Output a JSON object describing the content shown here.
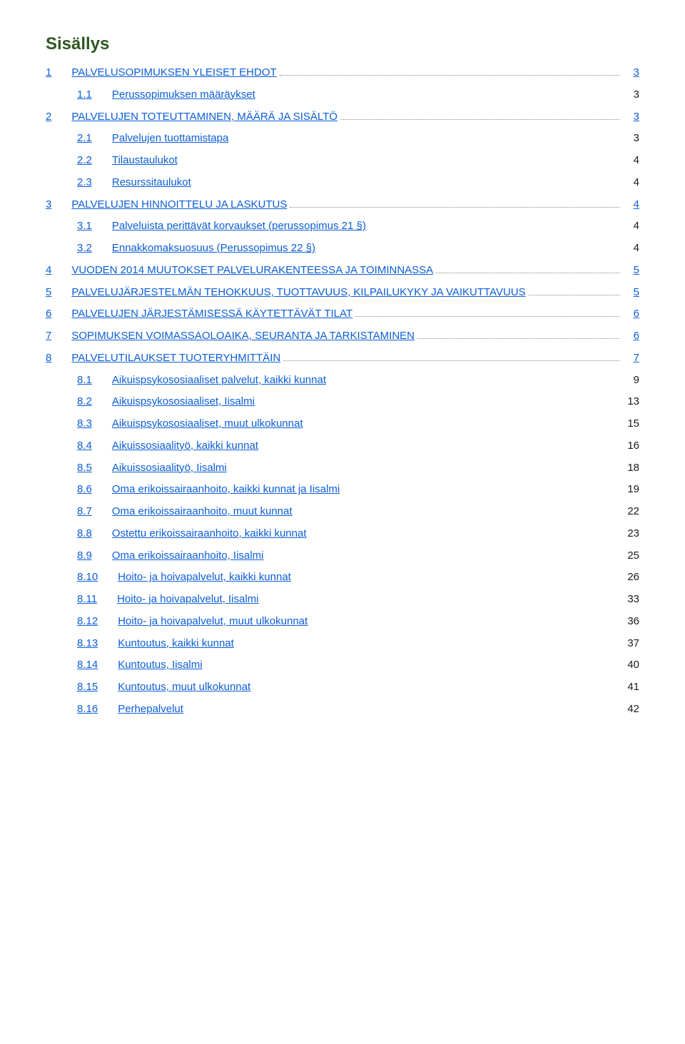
{
  "title": "Sisällys",
  "colors": {
    "title": "#2f5722",
    "link": "#0b5ed7",
    "text": "#1a1a1a",
    "background": "#ffffff",
    "dotted": "#888888"
  },
  "typography": {
    "title_fontsize_pt": 18,
    "body_fontsize_pt": 11,
    "font_family": "Arial"
  },
  "entries": [
    {
      "level": 0,
      "num": "1",
      "label": "PALVELUSOPIMUKSEN YLEISET EHDOT",
      "page": "3",
      "leader": true,
      "page_link": true
    },
    {
      "level": 1,
      "num": "1.1",
      "label": "Perussopimuksen määräykset",
      "page": "3",
      "leader": false,
      "page_link": false
    },
    {
      "level": 0,
      "num": "2",
      "label": "PALVELUJEN TOTEUTTAMINEN, MÄÄRÄ JA SISÄLTÖ",
      "page": "3",
      "leader": true,
      "page_link": true
    },
    {
      "level": 1,
      "num": "2.1",
      "label": "Palvelujen tuottamistapa",
      "page": "3",
      "leader": false,
      "page_link": false
    },
    {
      "level": 1,
      "num": "2.2",
      "label": "Tilaustaulukot",
      "page": "4",
      "leader": false,
      "page_link": false
    },
    {
      "level": 1,
      "num": "2.3",
      "label": "Resurssitaulukot",
      "page": "4",
      "leader": false,
      "page_link": false
    },
    {
      "level": 0,
      "num": "3",
      "label": "PALVELUJEN HINNOITTELU JA LASKUTUS",
      "page": "4",
      "leader": true,
      "page_link": true
    },
    {
      "level": 1,
      "num": "3.1",
      "label": "Palveluista perittävät korvaukset (perussopimus 21 §)",
      "page": "4",
      "leader": false,
      "page_link": false
    },
    {
      "level": 1,
      "num": "3.2",
      "label": "Ennakkomaksuosuus (Perussopimus 22 §)",
      "page": "4",
      "leader": false,
      "page_link": false
    },
    {
      "level": 0,
      "num": "4",
      "label": "VUODEN 2014 MUUTOKSET PALVELURAKENTEESSA JA TOIMINNASSA",
      "page": "5",
      "leader": true,
      "page_link": true
    },
    {
      "level": 0,
      "num": "5",
      "label": "PALVELUJÄRJESTELMÄN TEHOKKUUS, TUOTTAVUUS, KILPAILUKYKY JA VAIKUTTAVUUS",
      "page": "5",
      "leader": true,
      "page_link": true
    },
    {
      "level": 0,
      "num": "6",
      "label": "PALVELUJEN JÄRJESTÄMISESSÄ KÄYTETTÄVÄT TILAT",
      "page": "6",
      "leader": true,
      "page_link": true
    },
    {
      "level": 0,
      "num": "7",
      "label": "SOPIMUKSEN VOIMASSAOLOAIKA, SEURANTA JA TARKISTAMINEN",
      "page": "6",
      "leader": true,
      "page_link": true
    },
    {
      "level": 0,
      "num": "8",
      "label": "PALVELUTILAUKSET TUOTERYHMITTÄIN",
      "page": "7",
      "leader": true,
      "page_link": true
    },
    {
      "level": 1,
      "num": "8.1",
      "label": "Aikuispsykososiaaliset palvelut, kaikki kunnat",
      "page": "9",
      "leader": false,
      "page_link": false
    },
    {
      "level": 1,
      "num": "8.2",
      "label": "Aikuispsykososiaaliset, Iisalmi",
      "page": "13",
      "leader": false,
      "page_link": false
    },
    {
      "level": 1,
      "num": "8.3",
      "label": "Aikuispsykososiaaliset, muut ulkokunnat",
      "page": "15",
      "leader": false,
      "page_link": false
    },
    {
      "level": 1,
      "num": "8.4",
      "label": "Aikuissosiaalityö, kaikki kunnat",
      "page": "16",
      "leader": false,
      "page_link": false
    },
    {
      "level": 1,
      "num": "8.5",
      "label": "Aikuissosiaalityö, Iisalmi",
      "page": "18",
      "leader": false,
      "page_link": false
    },
    {
      "level": 1,
      "num": "8.6",
      "label": "Oma erikoissairaanhoito, kaikki kunnat ja Iisalmi",
      "page": "19",
      "leader": false,
      "page_link": false
    },
    {
      "level": 1,
      "num": "8.7",
      "label": "Oma erikoissairaanhoito, muut kunnat",
      "page": "22",
      "leader": false,
      "page_link": false
    },
    {
      "level": 1,
      "num": "8.8",
      "label": "Ostettu erikoissairaanhoito, kaikki kunnat",
      "page": "23",
      "leader": false,
      "page_link": false
    },
    {
      "level": 1,
      "num": "8.9",
      "label": "Oma erikoissairaanhoito, Iisalmi",
      "page": "25",
      "leader": false,
      "page_link": false
    },
    {
      "level": 1,
      "num": "8.10",
      "label": "Hoito- ja hoivapalvelut, kaikki kunnat",
      "page": "26",
      "leader": false,
      "page_link": false
    },
    {
      "level": 1,
      "num": "8.11",
      "label": "Hoito- ja hoivapalvelut, Iisalmi",
      "page": "33",
      "leader": false,
      "page_link": false
    },
    {
      "level": 1,
      "num": "8.12",
      "label": "Hoito- ja hoivapalvelut, muut ulkokunnat",
      "page": "36",
      "leader": false,
      "page_link": false
    },
    {
      "level": 1,
      "num": "8.13",
      "label": "Kuntoutus, kaikki kunnat",
      "page": "37",
      "leader": false,
      "page_link": false
    },
    {
      "level": 1,
      "num": "8.14",
      "label": "Kuntoutus, Iisalmi",
      "page": "40",
      "leader": false,
      "page_link": false
    },
    {
      "level": 1,
      "num": "8.15",
      "label": "Kuntoutus, muut ulkokunnat",
      "page": "41",
      "leader": false,
      "page_link": false
    },
    {
      "level": 1,
      "num": "8.16",
      "label": "Perhepalvelut",
      "page": "42",
      "leader": false,
      "page_link": false
    }
  ]
}
